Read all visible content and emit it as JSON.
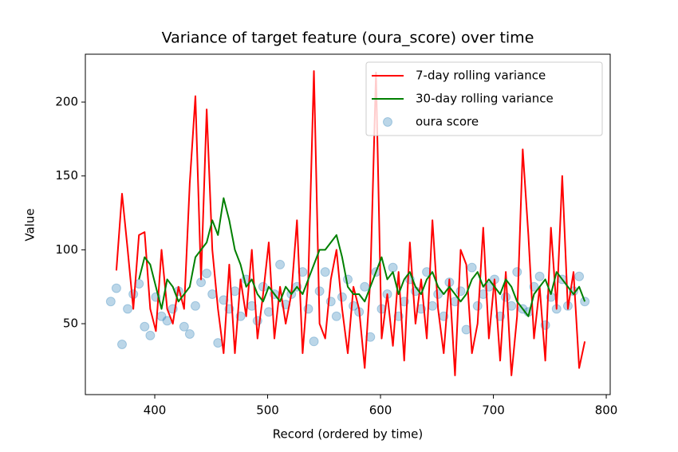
{
  "chart_data": {
    "type": "line",
    "title": "Variance of target feature (oura_score) over time",
    "xlabel": "Record (ordered by time)",
    "ylabel": "Value",
    "xlim": [
      338.5,
      803.5
    ],
    "xticks": [
      400,
      500,
      600,
      700,
      800
    ],
    "ylim": [
      2,
      232.4
    ],
    "yticks": [
      50,
      100,
      150,
      200
    ],
    "legend": "upper right",
    "x": [
      361,
      366,
      371,
      376,
      381,
      386,
      391,
      396,
      401,
      406,
      411,
      416,
      421,
      426,
      431,
      436,
      441,
      446,
      451,
      456,
      461,
      466,
      471,
      476,
      481,
      486,
      491,
      496,
      501,
      506,
      511,
      516,
      521,
      526,
      531,
      536,
      541,
      546,
      551,
      556,
      561,
      566,
      571,
      576,
      581,
      586,
      591,
      596,
      601,
      606,
      611,
      616,
      621,
      626,
      631,
      636,
      641,
      646,
      651,
      656,
      661,
      666,
      671,
      676,
      681,
      686,
      691,
      696,
      701,
      706,
      711,
      716,
      721,
      726,
      731,
      736,
      741,
      746,
      751,
      756,
      761,
      766,
      771,
      776,
      781
    ],
    "series": [
      {
        "name": "7-day rolling variance",
        "type": "line",
        "color": "#ff0000",
        "values": [
          null,
          86,
          138,
          100,
          60,
          110,
          112,
          60,
          45,
          100,
          60,
          50,
          75,
          60,
          145,
          204,
          80,
          195,
          100,
          60,
          30,
          90,
          30,
          80,
          55,
          100,
          40,
          70,
          105,
          40,
          75,
          50,
          70,
          120,
          30,
          80,
          221,
          50,
          40,
          80,
          100,
          60,
          30,
          75,
          60,
          20,
          80,
          220,
          40,
          70,
          35,
          85,
          25,
          105,
          50,
          80,
          40,
          120,
          60,
          30,
          80,
          15,
          100,
          90,
          30,
          50,
          115,
          40,
          80,
          25,
          85,
          15,
          55,
          168,
          110,
          40,
          75,
          25,
          115,
          60,
          150,
          60,
          85,
          20,
          38
        ]
      },
      {
        "name": "30-day rolling variance",
        "type": "line",
        "color": "#008000",
        "values": [
          null,
          null,
          null,
          null,
          null,
          80,
          95,
          90,
          75,
          60,
          80,
          75,
          65,
          70,
          75,
          95,
          100,
          105,
          120,
          110,
          135,
          120,
          100,
          90,
          75,
          80,
          70,
          65,
          75,
          70,
          65,
          75,
          70,
          75,
          70,
          80,
          90,
          100,
          100,
          105,
          110,
          95,
          75,
          70,
          70,
          65,
          75,
          85,
          95,
          80,
          85,
          70,
          80,
          85,
          75,
          70,
          80,
          85,
          75,
          70,
          75,
          70,
          65,
          70,
          80,
          85,
          75,
          80,
          75,
          70,
          80,
          75,
          65,
          60,
          55,
          70,
          75,
          80,
          70,
          85,
          80,
          75,
          70,
          75,
          65
        ]
      },
      {
        "name": "oura score",
        "type": "scatter",
        "color": "#1f77b4",
        "values": [
          65,
          74,
          36,
          60,
          70,
          77,
          48,
          42,
          68,
          55,
          52,
          60,
          72,
          48,
          43,
          62,
          78,
          84,
          70,
          37,
          66,
          60,
          72,
          55,
          80,
          62,
          52,
          75,
          58,
          70,
          90,
          63,
          70,
          75,
          85,
          60,
          38,
          72,
          85,
          65,
          55,
          68,
          80,
          62,
          58,
          75,
          41,
          85,
          60,
          70,
          88,
          55,
          65,
          80,
          72,
          60,
          85,
          62,
          70,
          55,
          78,
          65,
          72,
          46,
          88,
          62,
          70,
          75,
          80,
          55,
          68,
          62,
          85,
          60,
          58,
          75,
          82,
          49,
          68,
          60,
          80,
          62,
          72,
          82,
          65
        ]
      }
    ]
  }
}
